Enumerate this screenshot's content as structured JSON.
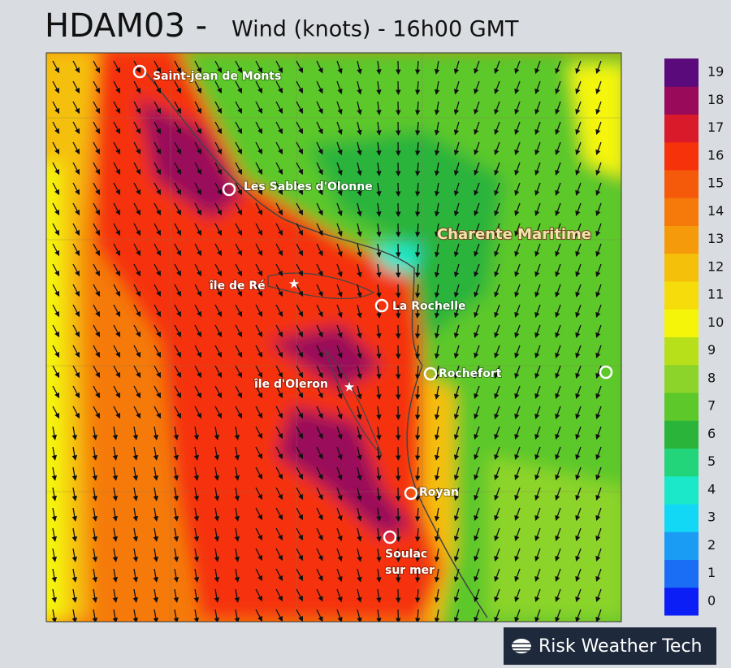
{
  "header": {
    "title": "HDAM03 -",
    "subtitle": "Wind (knots) - 16h00 GMT"
  },
  "map": {
    "region_label": "Charente Maritime",
    "places": [
      {
        "label": [
          "Saint-jean de Monts"
        ]
      },
      {
        "label": [
          "Les Sables d'Olonne"
        ]
      },
      {
        "label": [
          "île de Ré"
        ]
      },
      {
        "label": [
          "La Rochelle"
        ]
      },
      {
        "label": [
          "Rochefort"
        ]
      },
      {
        "label": [
          "île d'Oleron"
        ]
      },
      {
        "label": [
          "Royan"
        ]
      },
      {
        "label": [
          "Soulac",
          "sur mer"
        ]
      }
    ]
  },
  "legend": {
    "levels": [
      {
        "value": 0,
        "color": "#0a1ef5"
      },
      {
        "value": 1,
        "color": "#1a6ef5"
      },
      {
        "value": 2,
        "color": "#1a9cf5"
      },
      {
        "value": 3,
        "color": "#12d8f5"
      },
      {
        "value": 4,
        "color": "#1ae8c8"
      },
      {
        "value": 5,
        "color": "#22d47a"
      },
      {
        "value": 6,
        "color": "#2ab43a"
      },
      {
        "value": 7,
        "color": "#5cc82a"
      },
      {
        "value": 8,
        "color": "#8cd42a"
      },
      {
        "value": 9,
        "color": "#b8e01a"
      },
      {
        "value": 10,
        "color": "#f5f50a"
      },
      {
        "value": 11,
        "color": "#f5dc0a"
      },
      {
        "value": 12,
        "color": "#f5c00a"
      },
      {
        "value": 13,
        "color": "#f59a0a"
      },
      {
        "value": 14,
        "color": "#f57a0a"
      },
      {
        "value": 15,
        "color": "#f55a0a"
      },
      {
        "value": 16,
        "color": "#f5320a"
      },
      {
        "value": 17,
        "color": "#d81a2a"
      },
      {
        "value": 18,
        "color": "#9a0a5a"
      },
      {
        "value": 19,
        "color": "#5a0a7a"
      }
    ]
  },
  "brand": "Risk Weather Tech"
}
